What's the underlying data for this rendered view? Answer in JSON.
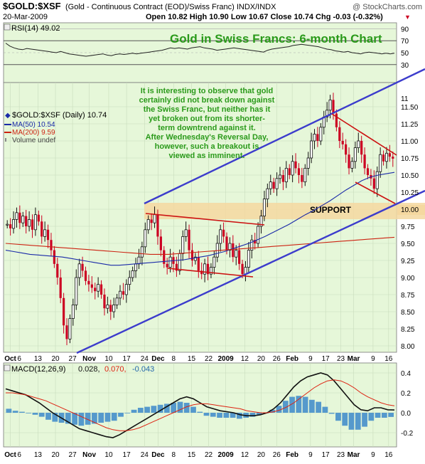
{
  "header": {
    "symbol": "$GOLD:$XSF",
    "desc": "(Gold - Continuous Contract (EOD)/Swiss Franc)  INDX/INDX",
    "credit": "@ StockCharts.com",
    "date": "20-Mar-2009",
    "ohlc": "Open 10.82  High 10.90  Low 10.67  Close 10.74  Chg -0.03 (-0.32%)",
    "ohlc_arrow": "▼"
  },
  "rsi": {
    "label": "RSI(14) 49.02",
    "ticks": [
      90,
      70,
      50,
      30
    ],
    "values": [
      66,
      61,
      58,
      56,
      55,
      57,
      56,
      55,
      54,
      53,
      52,
      51,
      50,
      52,
      50,
      48,
      47,
      46,
      45,
      44,
      45,
      46,
      47,
      48,
      46,
      45,
      47,
      48,
      47,
      48,
      49,
      48,
      49,
      50,
      51,
      52,
      53,
      54,
      56,
      58,
      57,
      58,
      57,
      56,
      58,
      59,
      60,
      58,
      57,
      56,
      54,
      55,
      56,
      57,
      58,
      57,
      56,
      55,
      54,
      53,
      52,
      51,
      54,
      56,
      57,
      58,
      59,
      60,
      62,
      63,
      64,
      63,
      62,
      61,
      60,
      58,
      56,
      55,
      53,
      52,
      51,
      52,
      50,
      49,
      48,
      50,
      51,
      50,
      49,
      48,
      49,
      48,
      49
    ]
  },
  "price": {
    "title": "Gold in Swiss Francs: 6-month Chart",
    "legend": {
      "main": "$GOLD:$XSF (Daily) 10.74",
      "ma50": "MA(50) 10.54",
      "ma200": "MA(200) 9.59",
      "volume": "Volume undef"
    },
    "annotation": [
      "It is interesting to observe that gold",
      "certainly did not break down against",
      "the Swiss Franc, but neither has it",
      "yet broken out from its shorter-",
      "term downtrend against it.",
      "After Wednesday's Reversal Day,",
      "however, such a breakout is",
      "viewed as imminent."
    ],
    "support_label": "SUPPORT",
    "ticks": [
      "11.50",
      "11.25",
      "11.00",
      "10.75",
      "10.50",
      "10.25",
      "10.00",
      "9.75",
      "9.50",
      "9.25",
      "9.00",
      "8.75",
      "8.50",
      "8.25",
      "8.00"
    ],
    "extra_tick": "11",
    "highlight_tick": "10.00",
    "closes": [
      9.78,
      9.72,
      9.85,
      9.95,
      9.8,
      9.9,
      9.75,
      9.85,
      9.7,
      9.92,
      9.82,
      9.6,
      9.7,
      9.55,
      9.4,
      9.2,
      9.0,
      8.7,
      8.3,
      8.1,
      8.4,
      8.6,
      9.0,
      9.2,
      9.1,
      8.95,
      8.9,
      8.85,
      8.8,
      8.9,
      8.75,
      8.55,
      8.6,
      8.5,
      8.6,
      8.7,
      8.8,
      8.75,
      8.9,
      9.0,
      9.1,
      9.2,
      9.3,
      9.45,
      9.7,
      9.85,
      9.8,
      9.92,
      9.6,
      9.4,
      9.2,
      9.15,
      9.3,
      9.2,
      9.1,
      9.35,
      9.6,
      9.7,
      9.4,
      9.25,
      9.3,
      9.1,
      9.05,
      9.2,
      9.05,
      9.15,
      9.3,
      9.5,
      9.7,
      9.6,
      9.4,
      9.5,
      9.3,
      9.4,
      9.2,
      9.05,
      9.15,
      9.4,
      9.55,
      9.5,
      9.75,
      9.9,
      10.15,
      10.3,
      10.4,
      10.3,
      10.45,
      10.5,
      10.4,
      10.6,
      10.5,
      10.7,
      10.6,
      10.5,
      10.4,
      10.6,
      10.75,
      11.0,
      11.1,
      11.0,
      11.2,
      11.35,
      11.45,
      11.6,
      11.4,
      11.2,
      11.0,
      10.95,
      10.8,
      10.6,
      10.7,
      10.9,
      11.0,
      10.8,
      10.6,
      10.5,
      10.45,
      10.3,
      10.55,
      10.8,
      10.7,
      10.82,
      10.77,
      10.74
    ],
    "ma50": [
      9.4,
      9.38,
      9.36,
      9.34,
      9.33,
      9.32,
      9.31,
      9.3,
      9.28,
      9.26,
      9.24,
      9.22,
      9.2,
      9.18,
      9.18,
      9.19,
      9.2,
      9.21,
      9.22,
      9.23,
      9.24,
      9.25,
      9.26,
      9.28,
      9.3,
      9.32,
      9.35,
      9.38,
      9.42,
      9.46,
      9.5,
      9.55,
      9.6,
      9.66,
      9.72,
      9.78,
      9.85,
      9.92,
      9.98,
      10.05,
      10.12,
      10.2,
      10.28,
      10.35,
      10.42,
      10.47,
      10.5,
      10.52,
      10.54
    ],
    "ma200": [
      9.5,
      9.49,
      9.48,
      9.47,
      9.46,
      9.45,
      9.44,
      9.43,
      9.42,
      9.41,
      9.4,
      9.39,
      9.38,
      9.37,
      9.36,
      9.35,
      9.34,
      9.34,
      9.34,
      9.35,
      9.36,
      9.37,
      9.38,
      9.39,
      9.4,
      9.41,
      9.42,
      9.43,
      9.44,
      9.45,
      9.46,
      9.47,
      9.48,
      9.49,
      9.5,
      9.51,
      9.52,
      9.53,
      9.54,
      9.55,
      9.56,
      9.57,
      9.58,
      9.59
    ]
  },
  "macd": {
    "label_name": "MACD(12,26,9)",
    "label_v1": "0.028,",
    "label_v2": "0.070,",
    "label_v3": "-0.043",
    "ticks": [
      "0.4",
      "0.2",
      "0.0",
      "-0.2"
    ],
    "macd_line": [
      0.24,
      0.22,
      0.2,
      0.18,
      0.14,
      0.1,
      0.05,
      0.0,
      -0.04,
      -0.08,
      -0.12,
      -0.16,
      -0.18,
      -0.2,
      -0.22,
      -0.24,
      -0.25,
      -0.22,
      -0.18,
      -0.14,
      -0.1,
      -0.06,
      -0.02,
      0.02,
      0.06,
      0.1,
      0.14,
      0.16,
      0.14,
      0.1,
      0.06,
      0.04,
      0.02,
      0.01,
      0.0,
      -0.02,
      -0.03,
      -0.03,
      -0.02,
      0.0,
      0.04,
      0.1,
      0.18,
      0.26,
      0.32,
      0.36,
      0.38,
      0.4,
      0.38,
      0.32,
      0.24,
      0.16,
      0.08,
      0.03,
      0.02,
      0.05,
      0.05,
      0.03,
      0.028
    ],
    "signal_line": [
      0.2,
      0.2,
      0.19,
      0.18,
      0.16,
      0.14,
      0.12,
      0.09,
      0.06,
      0.03,
      0.0,
      -0.03,
      -0.06,
      -0.09,
      -0.12,
      -0.15,
      -0.17,
      -0.18,
      -0.18,
      -0.17,
      -0.15,
      -0.12,
      -0.09,
      -0.06,
      -0.03,
      0.0,
      0.03,
      0.06,
      0.08,
      0.09,
      0.09,
      0.08,
      0.07,
      0.06,
      0.05,
      0.04,
      0.02,
      0.01,
      0.0,
      0.0,
      0.01,
      0.03,
      0.06,
      0.1,
      0.15,
      0.2,
      0.25,
      0.29,
      0.32,
      0.33,
      0.32,
      0.29,
      0.25,
      0.2,
      0.16,
      0.13,
      0.1,
      0.08,
      0.07
    ]
  },
  "x_labels": [
    {
      "label": "Oct",
      "pos": 0.012,
      "bold": true
    },
    {
      "label": "6",
      "pos": 0.035
    },
    {
      "label": "13",
      "pos": 0.083
    },
    {
      "label": "20",
      "pos": 0.128
    },
    {
      "label": "27",
      "pos": 0.172
    },
    {
      "label": "Nov",
      "pos": 0.215,
      "bold": true
    },
    {
      "label": "10",
      "pos": 0.265
    },
    {
      "label": "17",
      "pos": 0.311
    },
    {
      "label": "24",
      "pos": 0.357
    },
    {
      "label": "Dec",
      "pos": 0.392,
      "bold": true
    },
    {
      "label": "8",
      "pos": 0.432
    },
    {
      "label": "15",
      "pos": 0.478
    },
    {
      "label": "22",
      "pos": 0.522
    },
    {
      "label": "2009",
      "pos": 0.566,
      "bold": true
    },
    {
      "label": "12",
      "pos": 0.615
    },
    {
      "label": "20",
      "pos": 0.657
    },
    {
      "label": "26",
      "pos": 0.697
    },
    {
      "label": "Feb",
      "pos": 0.737,
      "bold": true
    },
    {
      "label": "9",
      "pos": 0.784
    },
    {
      "label": "17",
      "pos": 0.823
    },
    {
      "label": "23",
      "pos": 0.862
    },
    {
      "label": "Mar",
      "pos": 0.895,
      "bold": true
    },
    {
      "label": "9",
      "pos": 0.945
    },
    {
      "label": "16",
      "pos": 0.985
    }
  ],
  "colors": {
    "panel_bg": "#e6f7d9",
    "up": "#111111",
    "down": "#cc0022",
    "ma50": "#1a2aa8",
    "ma200": "#cc2211",
    "trend_blue": "#3c3ccc",
    "trend_red": "#cc1111",
    "support": "#f5d8a0",
    "title_green": "#2a9a1a",
    "hist": "#5599cc"
  }
}
